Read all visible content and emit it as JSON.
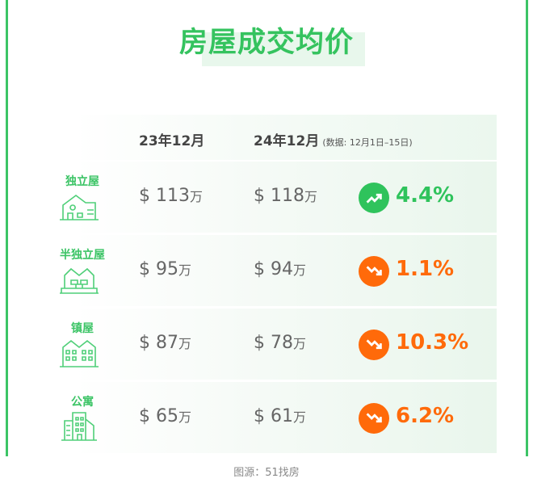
{
  "title": "房屋成交均价",
  "header": {
    "col1": "23年12月",
    "col2": "24年12月",
    "note": "(数据: 12月1日–15日)"
  },
  "colors": {
    "green": "#35c35f",
    "up": "#2fc35c",
    "down": "#ff6a0a"
  },
  "rows": [
    {
      "type": "独立屋",
      "icon": "detached-house-icon",
      "v2023": "$ 113",
      "v2024": "$ 118",
      "unit": "万",
      "trend": "up",
      "change": "4.4%"
    },
    {
      "type": "半独立屋",
      "icon": "semi-detached-house-icon",
      "v2023": "$ 95",
      "v2024": "$ 94",
      "unit": "万",
      "trend": "down",
      "change": "1.1%"
    },
    {
      "type": "镇屋",
      "icon": "townhouse-icon",
      "v2023": "$ 87",
      "v2024": "$ 78",
      "unit": "万",
      "trend": "down",
      "change": "10.3%"
    },
    {
      "type": "公寓",
      "icon": "apartment-icon",
      "v2023": "$ 65",
      "v2024": "$ 61",
      "unit": "万",
      "trend": "down",
      "change": "6.2%"
    }
  ],
  "caption": "图源：51找房"
}
